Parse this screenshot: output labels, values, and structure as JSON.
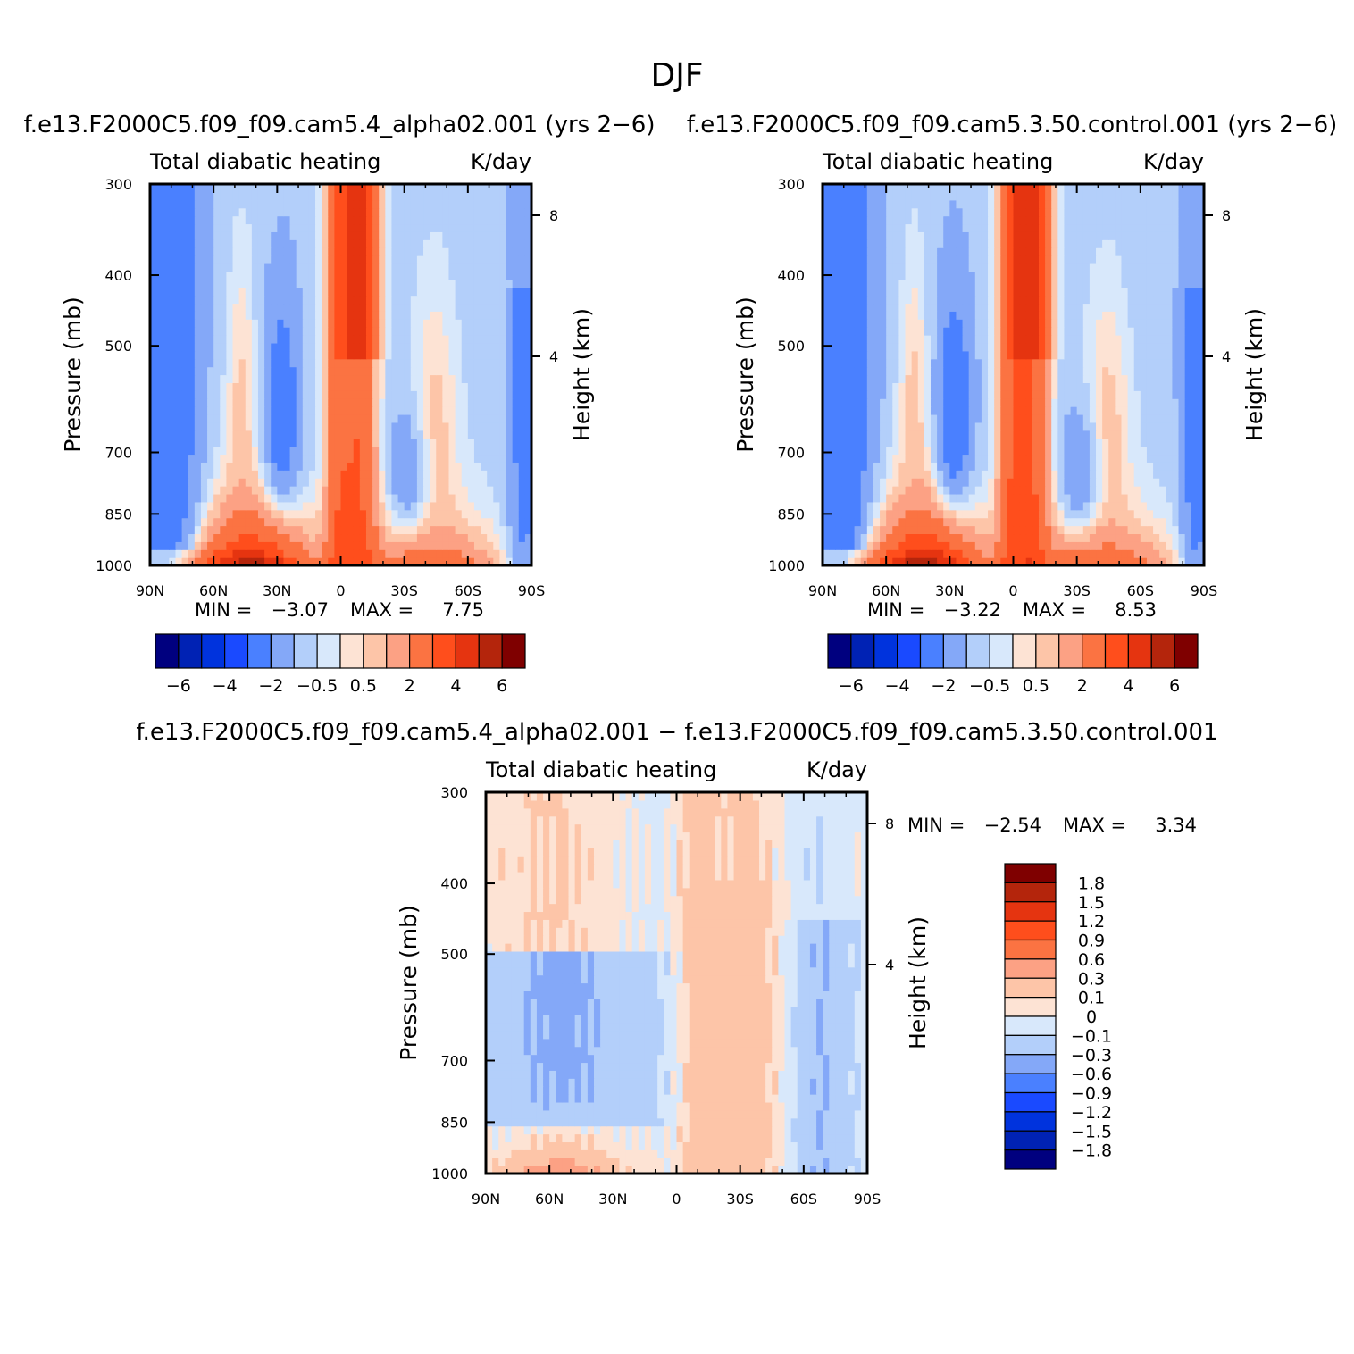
{
  "figure": {
    "title": "DJF"
  },
  "chart_data": [
    {
      "type": "heatmap",
      "case_title": "f.e13.F2000C5.f09_f09.cam5.4_alpha02.001  (yrs  2−6)",
      "left_title": "Total  diabatic  heating",
      "right_title": "K/day",
      "xlabel": "",
      "ylabel": "Pressure  (mb)",
      "ylabel_right": "Height  (km)",
      "x_ticks": [
        "90N",
        "60N",
        "30N",
        "0",
        "30S",
        "60S",
        "90S"
      ],
      "y_ticks": [
        "300",
        "400",
        "500",
        "700",
        "850",
        "1000"
      ],
      "height_ticks": [
        "8",
        "4"
      ],
      "xlim": [
        90,
        -90
      ],
      "ylim": [
        1000,
        300
      ],
      "min_label": "MIN  =",
      "min_value": "−3.07",
      "max_label": "MAX  =",
      "max_value": "7.75",
      "colorbar_labels": [
        "−6",
        "−4",
        "−2",
        "−0.5",
        "0.5",
        "2",
        "4",
        "6"
      ]
    },
    {
      "type": "heatmap",
      "case_title": "f.e13.F2000C5.f09_f09.cam5.3.50.control.001  (yrs  2−6)",
      "left_title": "Total  diabatic  heating",
      "right_title": "K/day",
      "xlabel": "",
      "ylabel": "Pressure  (mb)",
      "ylabel_right": "Height  (km)",
      "x_ticks": [
        "90N",
        "60N",
        "30N",
        "0",
        "30S",
        "60S",
        "90S"
      ],
      "y_ticks": [
        "300",
        "400",
        "500",
        "700",
        "850",
        "1000"
      ],
      "height_ticks": [
        "8",
        "4"
      ],
      "xlim": [
        90,
        -90
      ],
      "ylim": [
        1000,
        300
      ],
      "min_label": "MIN  =",
      "min_value": "−3.22",
      "max_label": "MAX  =",
      "max_value": "8.53",
      "colorbar_labels": [
        "−6",
        "−4",
        "−2",
        "−0.5",
        "0.5",
        "2",
        "4",
        "6"
      ]
    },
    {
      "type": "heatmap",
      "case_title": "f.e13.F2000C5.f09_f09.cam5.4_alpha02.001  −  f.e13.F2000C5.f09_f09.cam5.3.50.control.001",
      "left_title": "Total  diabatic  heating",
      "right_title": "K/day",
      "xlabel": "",
      "ylabel": "Pressure  (mb)",
      "ylabel_right": "Height  (km)",
      "x_ticks": [
        "90N",
        "60N",
        "30N",
        "0",
        "30S",
        "60S",
        "90S"
      ],
      "y_ticks": [
        "300",
        "400",
        "500",
        "700",
        "850",
        "1000"
      ],
      "height_ticks": [
        "8",
        "4"
      ],
      "xlim": [
        90,
        -90
      ],
      "ylim": [
        1000,
        300
      ],
      "min_label": "MIN  =",
      "min_value": "−2.54",
      "max_label": "MAX  =",
      "max_value": "3.34",
      "colorbar_labels": [
        "1.8",
        "1.5",
        "1.2",
        "0.9",
        "0.6",
        "0.3",
        "0.1",
        "0",
        "−0.1",
        "−0.3",
        "−0.6",
        "−0.9",
        "−1.2",
        "−1.5",
        "−1.8"
      ]
    }
  ],
  "colors": {
    "palette16": [
      "#00007f",
      "#0022b4",
      "#0033dd",
      "#1a4aff",
      "#4a80ff",
      "#84a8f8",
      "#b3cffa",
      "#d8e8fb",
      "#fde3d4",
      "#fdc5a8",
      "#fca184",
      "#fb7342",
      "#ff4e1c",
      "#e53410",
      "#b4250c",
      "#7f0000"
    ],
    "panel_bg": "#d8e8fb"
  }
}
